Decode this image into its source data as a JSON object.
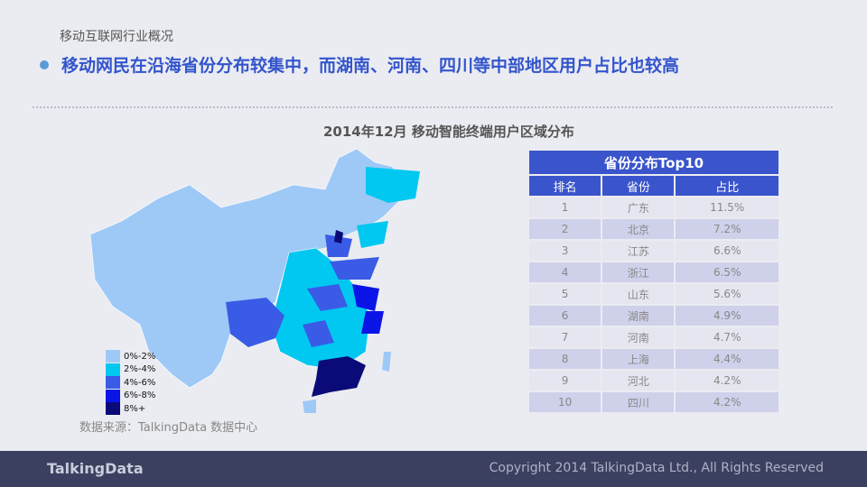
{
  "breadcrumb": "移动互联网行业概况",
  "headline": "移动网民在沿海省份分布较集中，而湖南、河南、四川等中部地区用户占比也较高",
  "chart_title": "2014年12月 移动智能终端用户区域分布",
  "legend": [
    {
      "label": "0%-2%",
      "color": "#9ec9f7"
    },
    {
      "label": "2%-4%",
      "color": "#00c8f0"
    },
    {
      "label": "4%-6%",
      "color": "#3a5be6"
    },
    {
      "label": "6%-8%",
      "color": "#0a14e6"
    },
    {
      "label": "8%+",
      "color": "#0a0a78"
    }
  ],
  "source": "数据来源：TalkingData 数据中心",
  "table": {
    "title": "省份分布Top10",
    "headers": [
      "排名",
      "省份",
      "占比"
    ],
    "rows": [
      [
        "1",
        "广东",
        "11.5%"
      ],
      [
        "2",
        "北京",
        "7.2%"
      ],
      [
        "3",
        "江苏",
        "6.6%"
      ],
      [
        "4",
        "浙江",
        "6.5%"
      ],
      [
        "5",
        "山东",
        "5.6%"
      ],
      [
        "6",
        "湖南",
        "4.9%"
      ],
      [
        "7",
        "河南",
        "4.7%"
      ],
      [
        "8",
        "上海",
        "4.4%"
      ],
      [
        "9",
        "河北",
        "4.2%"
      ],
      [
        "10",
        "四川",
        "4.2%"
      ]
    ]
  },
  "footer": {
    "logo": "TalkingData",
    "copyright": "Copyright 2014 TalkingData Ltd., All Rights Reserved"
  }
}
